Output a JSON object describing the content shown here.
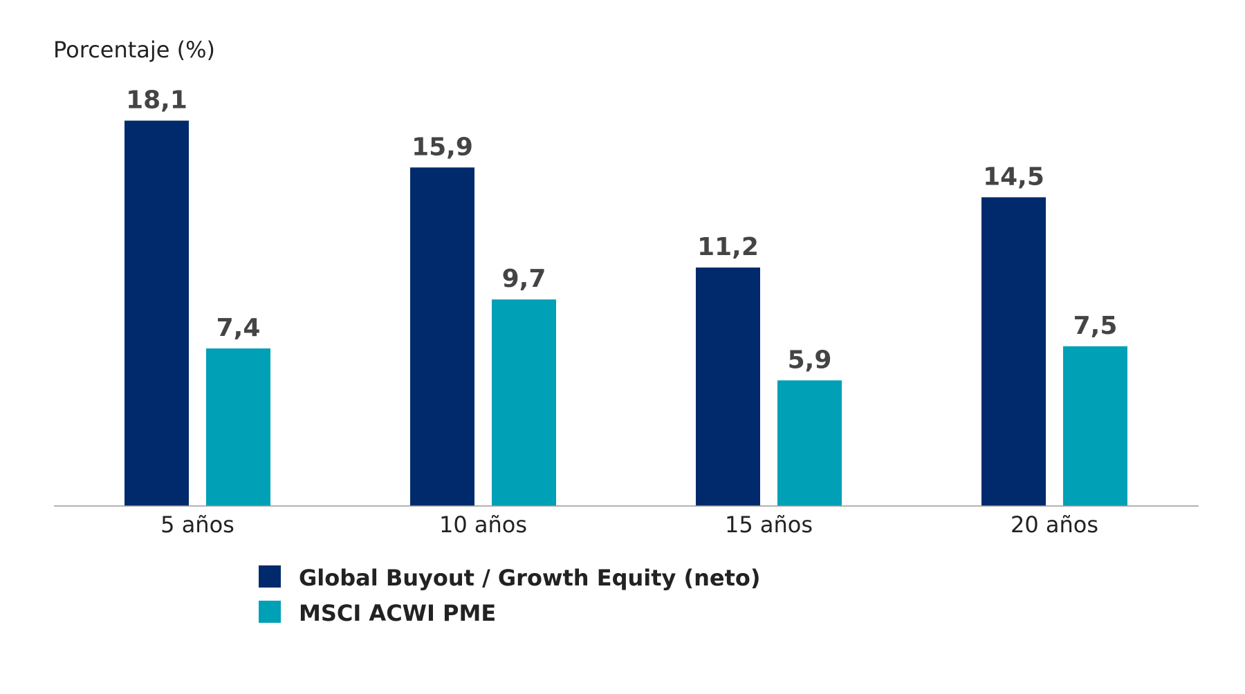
{
  "chart_data": {
    "type": "bar",
    "ylabel": "Porcentaje (%)",
    "categories": [
      "5 años",
      "10 años",
      "15 años",
      "20 años"
    ],
    "series": [
      {
        "name": "Global Buyout / Growth Equity (neto)",
        "values": [
          18.1,
          15.9,
          11.2,
          14.5
        ],
        "labels": [
          "18,1",
          "15,9",
          "11,2",
          "14,5"
        ],
        "color": "#002a6c"
      },
      {
        "name": "MSCI ACWI PME",
        "values": [
          7.4,
          9.7,
          5.9,
          7.5
        ],
        "labels": [
          "7,4",
          "9,7",
          "5,9",
          "7,5"
        ],
        "color": "#00a0b6"
      }
    ],
    "ylim": [
      0,
      20
    ],
    "grid": false,
    "axis_color": "#999999",
    "legend_position": "bottom"
  }
}
